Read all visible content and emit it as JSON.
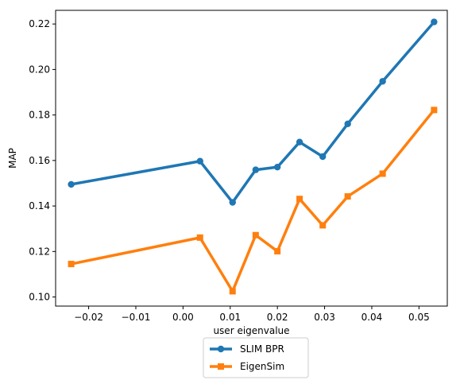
{
  "chart_data": {
    "type": "line",
    "title": "",
    "xlabel": "user eigenvalue",
    "ylabel": "MAP",
    "xlim": [
      -0.027,
      0.056
    ],
    "ylim": [
      0.096,
      0.226
    ],
    "xticks": [
      -0.02,
      -0.01,
      0.0,
      0.01,
      0.02,
      0.03,
      0.04,
      0.05
    ],
    "xtick_labels": [
      "−0.02",
      "−0.01",
      "0.00",
      "0.01",
      "0.02",
      "0.03",
      "0.04",
      "0.05"
    ],
    "yticks": [
      0.1,
      0.12,
      0.14,
      0.16,
      0.18,
      0.2,
      0.22
    ],
    "ytick_labels": [
      "0.10",
      "0.12",
      "0.14",
      "0.16",
      "0.18",
      "0.20",
      "0.22"
    ],
    "grid": false,
    "legend_position": "below-center",
    "series": [
      {
        "name": "SLIM BPR",
        "color": "#1f77b4",
        "marker": "circle",
        "x": [
          -0.0237,
          0.0036,
          0.0105,
          0.0154,
          0.02,
          0.0247,
          0.0296,
          0.0349,
          0.0423,
          0.0532
        ],
        "y": [
          0.1495,
          0.1597,
          0.1416,
          0.1559,
          0.1571,
          0.1681,
          0.1617,
          0.1761,
          0.1948,
          0.2209
        ]
      },
      {
        "name": "EigenSim",
        "color": "#ff7f0e",
        "marker": "square",
        "x": [
          -0.0237,
          0.0036,
          0.0105,
          0.0154,
          0.02,
          0.0247,
          0.0296,
          0.0349,
          0.0423,
          0.0532
        ],
        "y": [
          0.1145,
          0.1261,
          0.1025,
          0.1272,
          0.1201,
          0.1431,
          0.1315,
          0.1442,
          0.1542,
          0.1822
        ]
      }
    ]
  }
}
